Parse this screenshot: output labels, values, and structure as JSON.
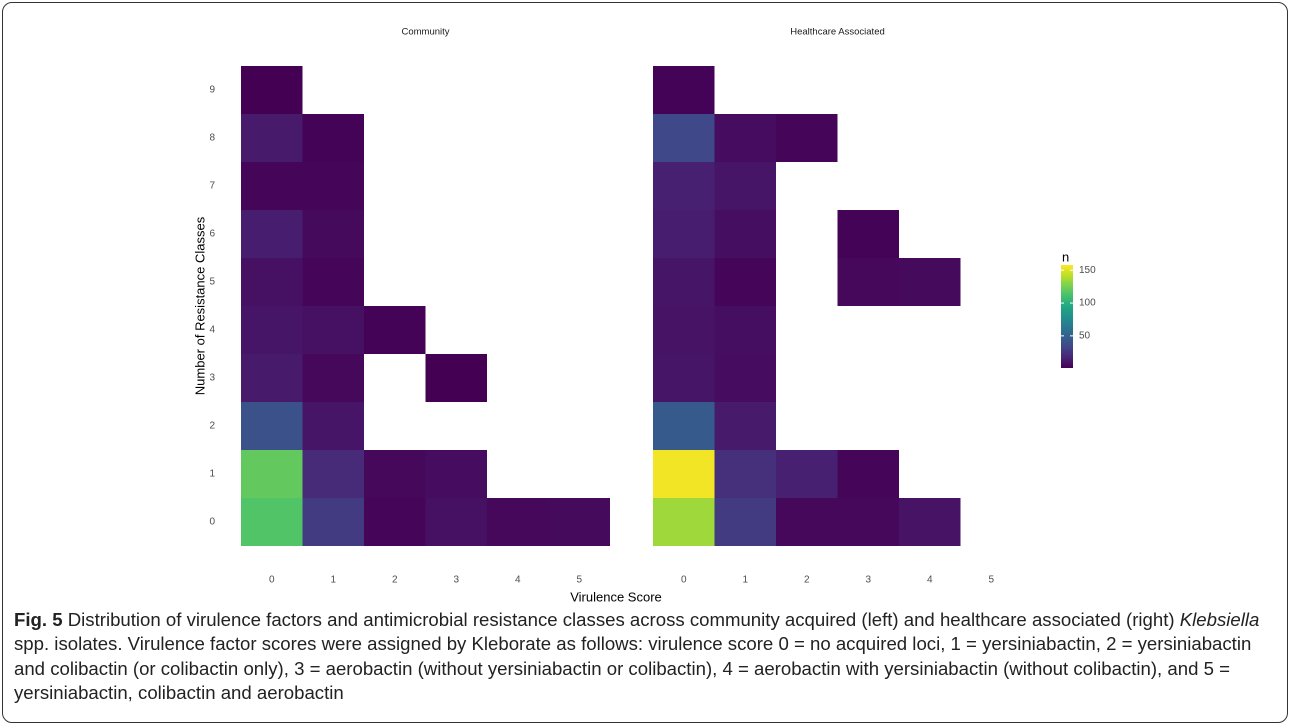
{
  "chart_data": {
    "type": "heatmap",
    "x_label": "Virulence Score",
    "y_label": "Number of Resistance Classes",
    "xlim": [
      -0.5,
      5.5
    ],
    "ylim": [
      -0.5,
      9.5
    ],
    "xticks": [
      0,
      1,
      2,
      3,
      4,
      5
    ],
    "yticks": [
      0,
      1,
      2,
      3,
      4,
      5,
      6,
      7,
      8,
      9
    ],
    "colormap": "viridis",
    "legend": {
      "title": "n",
      "clim": [
        1,
        158
      ],
      "ticks": [
        50,
        100,
        150
      ],
      "position": "right"
    },
    "panels": [
      {
        "title": "Community",
        "cells": [
          {
            "x": 0,
            "y": 9,
            "n": 1
          },
          {
            "x": 0,
            "y": 8,
            "n": 12
          },
          {
            "x": 1,
            "y": 8,
            "n": 2
          },
          {
            "x": 0,
            "y": 7,
            "n": 3
          },
          {
            "x": 1,
            "y": 7,
            "n": 3
          },
          {
            "x": 0,
            "y": 6,
            "n": 14
          },
          {
            "x": 1,
            "y": 6,
            "n": 5
          },
          {
            "x": 0,
            "y": 5,
            "n": 8
          },
          {
            "x": 1,
            "y": 5,
            "n": 3
          },
          {
            "x": 0,
            "y": 4,
            "n": 10
          },
          {
            "x": 1,
            "y": 4,
            "n": 8
          },
          {
            "x": 2,
            "y": 4,
            "n": 2
          },
          {
            "x": 0,
            "y": 3,
            "n": 12
          },
          {
            "x": 1,
            "y": 3,
            "n": 4
          },
          {
            "x": 3,
            "y": 3,
            "n": 1
          },
          {
            "x": 0,
            "y": 2,
            "n": 40
          },
          {
            "x": 1,
            "y": 2,
            "n": 10
          },
          {
            "x": 0,
            "y": 1,
            "n": 120
          },
          {
            "x": 1,
            "y": 1,
            "n": 20
          },
          {
            "x": 2,
            "y": 1,
            "n": 4
          },
          {
            "x": 3,
            "y": 1,
            "n": 6
          },
          {
            "x": 0,
            "y": 0,
            "n": 115
          },
          {
            "x": 1,
            "y": 0,
            "n": 28
          },
          {
            "x": 2,
            "y": 0,
            "n": 3
          },
          {
            "x": 3,
            "y": 0,
            "n": 8
          },
          {
            "x": 4,
            "y": 0,
            "n": 4
          },
          {
            "x": 5,
            "y": 0,
            "n": 5
          }
        ]
      },
      {
        "title": "Healthcare Associated",
        "cells": [
          {
            "x": 0,
            "y": 9,
            "n": 2
          },
          {
            "x": 0,
            "y": 8,
            "n": 35
          },
          {
            "x": 1,
            "y": 8,
            "n": 6
          },
          {
            "x": 2,
            "y": 8,
            "n": 3
          },
          {
            "x": 0,
            "y": 7,
            "n": 15
          },
          {
            "x": 1,
            "y": 7,
            "n": 10
          },
          {
            "x": 0,
            "y": 6,
            "n": 14
          },
          {
            "x": 1,
            "y": 6,
            "n": 7
          },
          {
            "x": 3,
            "y": 6,
            "n": 2
          },
          {
            "x": 0,
            "y": 5,
            "n": 10
          },
          {
            "x": 1,
            "y": 5,
            "n": 3
          },
          {
            "x": 3,
            "y": 5,
            "n": 4
          },
          {
            "x": 4,
            "y": 5,
            "n": 5
          },
          {
            "x": 0,
            "y": 4,
            "n": 9
          },
          {
            "x": 1,
            "y": 4,
            "n": 7
          },
          {
            "x": 0,
            "y": 3,
            "n": 10
          },
          {
            "x": 1,
            "y": 3,
            "n": 6
          },
          {
            "x": 0,
            "y": 2,
            "n": 45
          },
          {
            "x": 1,
            "y": 2,
            "n": 12
          },
          {
            "x": 0,
            "y": 1,
            "n": 155
          },
          {
            "x": 1,
            "y": 1,
            "n": 22
          },
          {
            "x": 2,
            "y": 1,
            "n": 15
          },
          {
            "x": 3,
            "y": 1,
            "n": 3
          },
          {
            "x": 0,
            "y": 0,
            "n": 135
          },
          {
            "x": 1,
            "y": 0,
            "n": 28
          },
          {
            "x": 2,
            "y": 0,
            "n": 4
          },
          {
            "x": 3,
            "y": 0,
            "n": 4
          },
          {
            "x": 4,
            "y": 0,
            "n": 9
          }
        ]
      }
    ]
  },
  "caption": {
    "label": "Fig. 5",
    "text_before": "Distribution of virulence factors and antimicrobial resistance classes across community acquired (left) and healthcare associated (right)",
    "italic": "Klebsiella",
    "text_after": "spp. isolates. Virulence factor scores were assigned by Kleborate as follows: virulence score 0 = no acquired loci, 1 = yersiniabactin, 2 = yersiniabactin and colibactin (or colibactin only), 3 = aerobactin (without yersiniabactin or colibactin), 4 = aerobactin with yersiniabactin (without colibactin), and 5 = yersiniabactin, colibactin and aerobactin"
  }
}
